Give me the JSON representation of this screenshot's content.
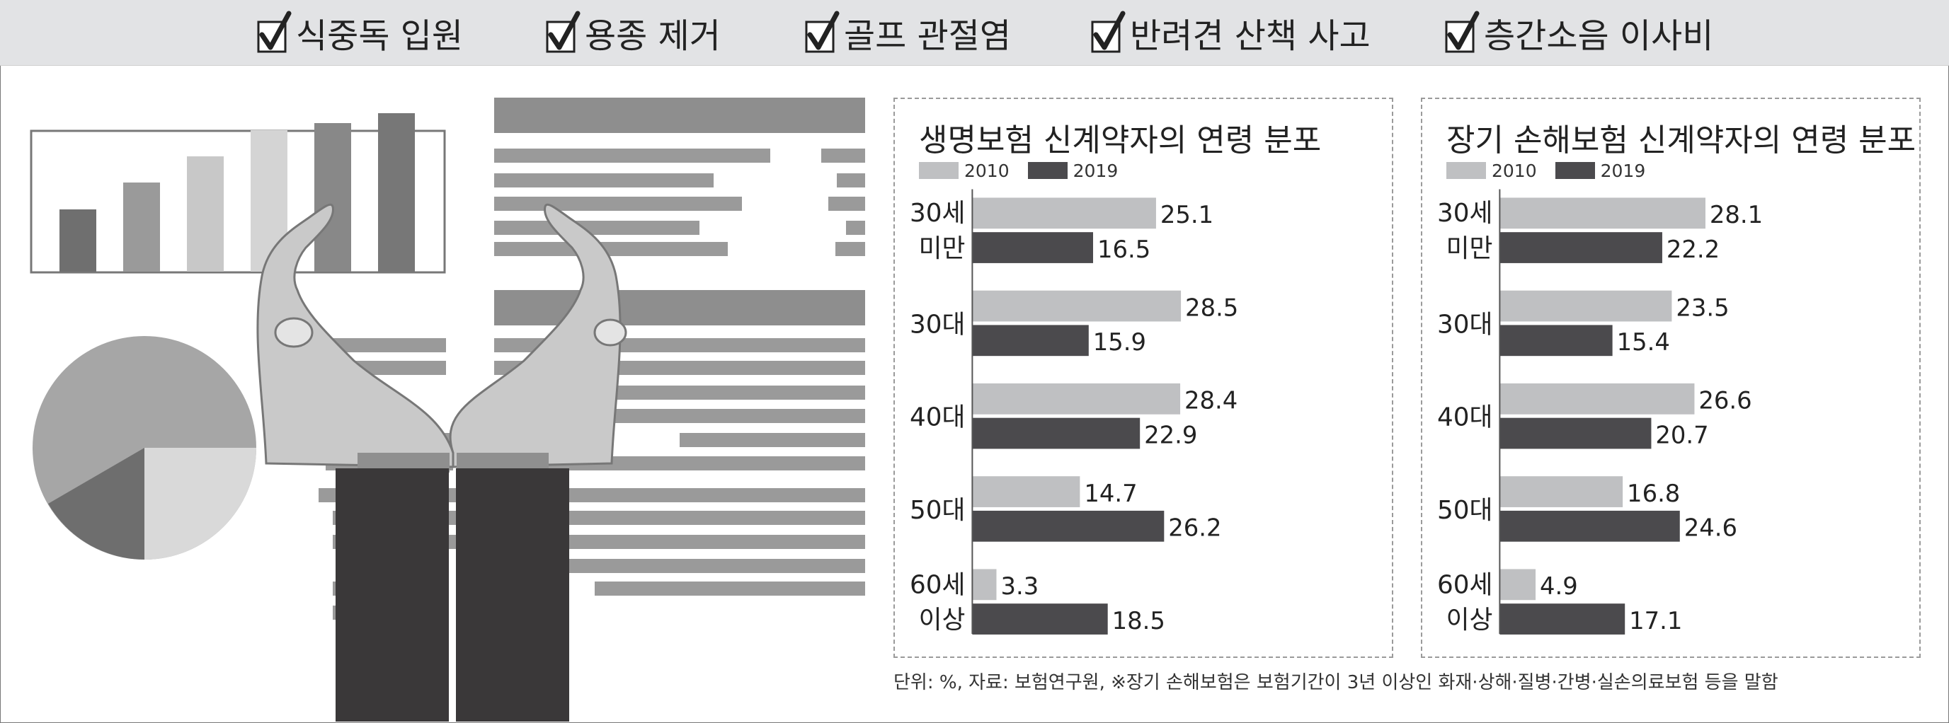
{
  "banner": {
    "items": [
      "식중독 입원",
      "용종 제거",
      "골프 관절염",
      "반려견 산책 사고",
      "층간소음 이사비"
    ]
  },
  "colors": {
    "banner_bg": "#e2e3e5",
    "series_2010": "#bfc0c2",
    "series_2019": "#4b4a4d",
    "dark_sleeve": "#3a3839"
  },
  "chart_data": [
    {
      "type": "bar",
      "orientation": "horizontal",
      "title": "생명보험 신계약자의 연령 분포",
      "categories": [
        [
          "30세",
          "미만"
        ],
        [
          "30대"
        ],
        [
          "40대"
        ],
        [
          "50대"
        ],
        [
          "60세",
          "이상"
        ]
      ],
      "series": [
        {
          "name": "2010",
          "values": [
            25.1,
            28.5,
            28.4,
            14.7,
            3.3
          ],
          "labels": [
            "25.1",
            "28.5",
            "28.4",
            "14.7",
            "3.3"
          ]
        },
        {
          "name": "2019",
          "values": [
            16.5,
            15.9,
            22.9,
            26.2,
            18.5
          ],
          "labels": [
            "16.5",
            "15.9",
            "22.9",
            "26.2",
            "18.5"
          ]
        }
      ],
      "legend": "top-left",
      "grid": false
    },
    {
      "type": "bar",
      "orientation": "horizontal",
      "title": "장기 손해보험 신계약자의 연령 분포",
      "categories": [
        [
          "30세",
          "미만"
        ],
        [
          "30대"
        ],
        [
          "40대"
        ],
        [
          "50대"
        ],
        [
          "60세",
          "이상"
        ]
      ],
      "series": [
        {
          "name": "2010",
          "values": [
            28.1,
            23.5,
            26.6,
            16.8,
            4.9
          ],
          "labels": [
            "28.1",
            "23.5",
            "26.6",
            "16.8",
            "4.9"
          ]
        },
        {
          "name": "2019",
          "values": [
            22.2,
            15.4,
            20.7,
            24.6,
            17.1
          ],
          "labels": [
            "22.2",
            "15.4",
            "20.7",
            "24.6",
            "17.1"
          ]
        }
      ],
      "legend": "top-left",
      "grid": false
    }
  ],
  "footnote": "단위: %, 자료: 보험연구원, ※장기 손해보험은 보험기간이 3년 이상인 화재·상해·질병·간병·실손의료보험 등을 말함"
}
